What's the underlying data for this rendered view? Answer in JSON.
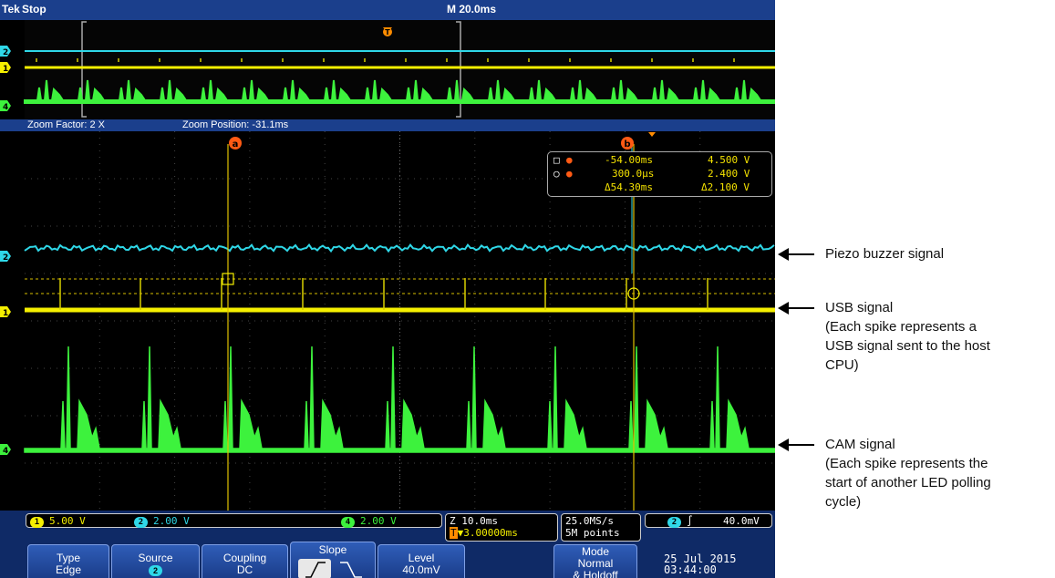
{
  "topbar": {
    "brand": "Tek",
    "run_state": "Stop",
    "timebase": "M 20.0ms"
  },
  "zoombar": {
    "factor": "Zoom Factor: 2 X",
    "position": "Zoom Position: -31.1ms"
  },
  "cursor_readout": {
    "a_time": "-54.00ms",
    "a_volt": "4.500 V",
    "b_time": "300.0µs",
    "b_volt": "2.400 V",
    "delta_time": "Δ54.30ms",
    "delta_volt": "Δ2.100 V"
  },
  "channels": {
    "ch1": {
      "label": "1",
      "scale": "5.00 V",
      "color": "#f5ef00"
    },
    "ch2": {
      "label": "2",
      "scale": "2.00 V",
      "color": "#2fd8e8"
    },
    "ch4": {
      "label": "4",
      "scale": "2.00 V",
      "color": "#3df23d"
    }
  },
  "status": {
    "zoom_time": "Z 10.0ms",
    "trigger_pos": "▼3.00000ms",
    "sample_rate": "25.0MS/s",
    "record_length": "5M points",
    "trigger_level": "40.0mV"
  },
  "menu": {
    "type": {
      "title": "Type",
      "value": "Edge"
    },
    "source": {
      "title": "Source",
      "value": "2"
    },
    "coupling": {
      "title": "Coupling",
      "value": "DC"
    },
    "slope": {
      "title": "Slope"
    },
    "level": {
      "title": "Level",
      "value": "40.0mV"
    },
    "mode": {
      "title": "Mode",
      "value1": "Normal",
      "value2": "& Holdoff"
    }
  },
  "datetime": {
    "date": "25 Jul  2015",
    "time": "03:44:00"
  },
  "annotations": {
    "piezo": "Piezo buzzer signal",
    "usb": [
      "USB signal",
      "(Each spike represents a",
      "USB signal sent to the host",
      "CPU)"
    ],
    "cam": [
      "CAM signal",
      "(Each spike represents the",
      "start of another LED polling",
      "cycle)"
    ]
  }
}
